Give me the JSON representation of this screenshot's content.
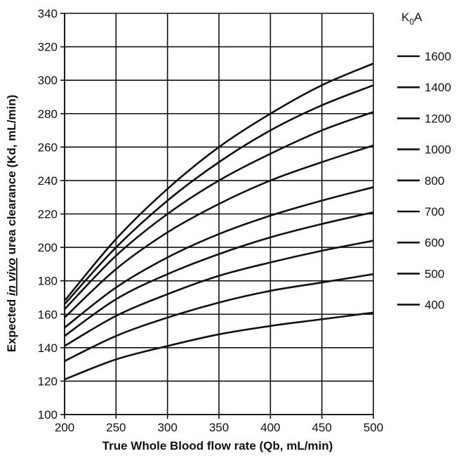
{
  "chart_data": {
    "type": "line",
    "xlabel": "True Whole Blood flow rate (Qb, mL/min)",
    "ylabel": {
      "prefix": "Expected ",
      "italic_underlined": "in vivo",
      "suffix": " urea clearance (Kd, mL/min)"
    },
    "xlim": [
      200,
      500
    ],
    "ylim": [
      100,
      340
    ],
    "x_ticks": [
      200,
      250,
      300,
      350,
      400,
      450,
      500
    ],
    "y_ticks": [
      100,
      120,
      140,
      160,
      180,
      200,
      220,
      240,
      260,
      280,
      300,
      320,
      340
    ],
    "grid": true,
    "legend": {
      "title_main": "K",
      "title_sub": "0",
      "title_tail": "A",
      "placement": "right"
    },
    "x": [
      200,
      250,
      300,
      350,
      400,
      450,
      500
    ],
    "series": [
      {
        "name": "1600",
        "values": [
          168,
          205,
          235,
          260,
          280,
          297,
          310
        ]
      },
      {
        "name": "1400",
        "values": [
          166,
          200,
          228,
          251,
          270,
          285,
          297
        ]
      },
      {
        "name": "1200",
        "values": [
          163,
          195,
          220,
          240,
          256,
          270,
          281
        ]
      },
      {
        "name": "1000",
        "values": [
          158,
          187,
          209,
          226,
          240,
          251,
          261
        ]
      },
      {
        "name": "800",
        "values": [
          152,
          176,
          194,
          208,
          219,
          228,
          236
        ]
      },
      {
        "name": "700",
        "values": [
          147,
          169,
          184,
          196,
          206,
          214,
          221
        ]
      },
      {
        "name": "600",
        "values": [
          141,
          159,
          172,
          183,
          191,
          198,
          204
        ]
      },
      {
        "name": "500",
        "values": [
          132,
          147,
          158,
          167,
          174,
          179,
          184
        ]
      },
      {
        "name": "400",
        "values": [
          121,
          133,
          141,
          148,
          153,
          157,
          161
        ]
      }
    ]
  }
}
